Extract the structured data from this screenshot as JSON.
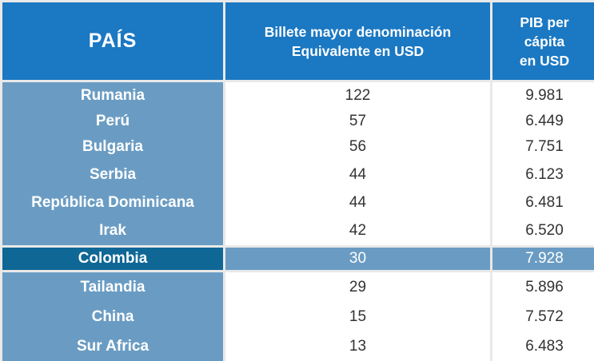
{
  "header": {
    "country": "PAÍS",
    "bill_line1": "Billete mayor denominación",
    "bill_line2": "Equivalente  en USD",
    "gdp_line1": "PIB per",
    "gdp_line2": "cápita",
    "gdp_line3": "en USD"
  },
  "rows_top": [
    {
      "country": "Rumania",
      "bill": "122",
      "gdp": "9.981"
    },
    {
      "country": "Perú",
      "bill": "57",
      "gdp": "6.449"
    },
    {
      "country": "Bulgaria",
      "bill": "56",
      "gdp": "7.751"
    },
    {
      "country": "Serbia",
      "bill": "44",
      "gdp": "6.123"
    },
    {
      "country": "República Dominicana",
      "bill": "44",
      "gdp": "6.481"
    },
    {
      "country": "Irak",
      "bill": "42",
      "gdp": "6.520"
    }
  ],
  "highlight": {
    "country": "Colombia",
    "bill": "30",
    "gdp": "7.928"
  },
  "rows_bottom": [
    {
      "country": "Tailandia",
      "bill": "29",
      "gdp": "5.896"
    },
    {
      "country": "China",
      "bill": "15",
      "gdp": "7.572"
    },
    {
      "country": "Sur Africa",
      "bill": "13",
      "gdp": "6.483"
    }
  ],
  "colors": {
    "header_blue": "#1b78c2",
    "country_column": "#6a9cc3",
    "highlight_dark": "#0f6796",
    "background": "#e9e9e9"
  }
}
